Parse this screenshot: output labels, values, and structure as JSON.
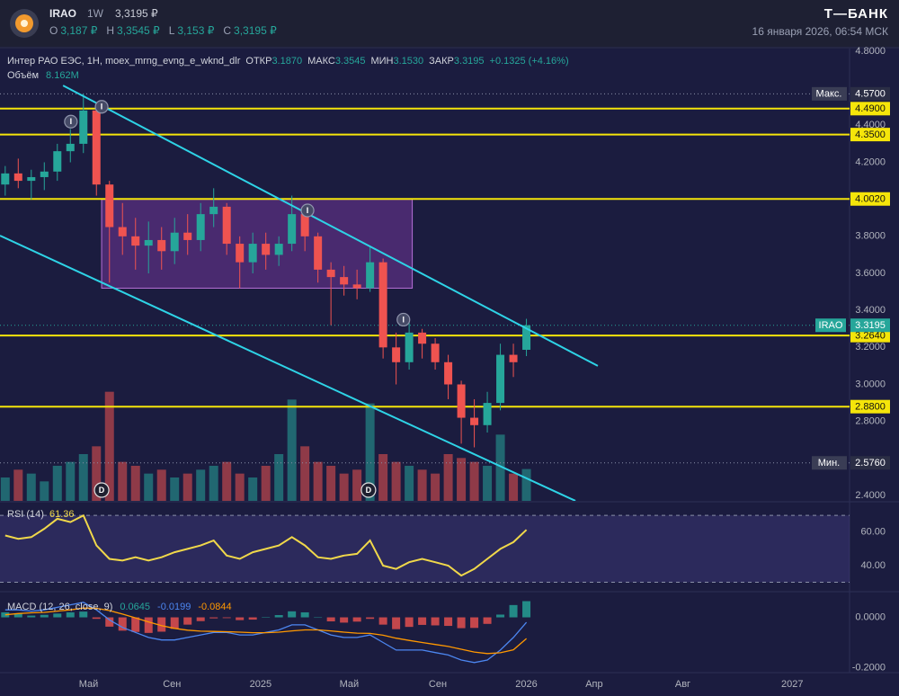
{
  "header": {
    "symbol": "IRAO",
    "interval": "1W",
    "price": "3,3195 ₽",
    "ohlc": [
      {
        "key": "O",
        "value": "3,187 ₽"
      },
      {
        "key": "H",
        "value": "3,3545 ₽"
      },
      {
        "key": "L",
        "value": "3,153 ₽"
      },
      {
        "key": "C",
        "value": "3,3195 ₽"
      }
    ],
    "brand": "Т—БАНК",
    "datetime": "16 января 2026, 06:54 МСК"
  },
  "chart_data": [
    {
      "type": "candlestick",
      "legend": {
        "name": "Интер РАО ЕЭС, 1H, moex_mrng_evng_e_wknd_dlr",
        "fields": [
          {
            "key": "ОТКР",
            "value": "3.1870"
          },
          {
            "key": "МАКС",
            "value": "3.3545"
          },
          {
            "key": "МИН",
            "value": "3.1530"
          },
          {
            "key": "ЗАКР",
            "value": "3.3195"
          }
        ],
        "change": "+0.1325 (+4.16%)"
      },
      "volume_title": "Объём",
      "volume_value": "8.162M",
      "up_color": "#26a69a",
      "down_color": "#ef5350",
      "x": [
        0,
        2.5,
        5,
        7.5,
        10,
        12.5,
        15,
        17.5,
        20,
        22.5,
        25,
        27.5,
        30,
        32.5,
        35,
        37.5,
        40,
        42.5,
        45,
        47.5,
        50,
        52.5,
        55,
        57.5,
        60,
        62.5,
        65,
        67.5,
        70,
        72.5,
        75,
        77.5,
        80,
        82.5,
        85,
        87.5,
        90,
        92.5,
        95,
        97.5,
        100
      ],
      "open": [
        4.08,
        4.14,
        4.1,
        4.12,
        4.15,
        4.26,
        4.3,
        4.48,
        4.08,
        3.85,
        3.8,
        3.75,
        3.78,
        3.72,
        3.82,
        3.78,
        3.92,
        3.96,
        3.76,
        3.66,
        3.76,
        3.7,
        3.76,
        3.92,
        3.8,
        3.62,
        3.58,
        3.54,
        3.52,
        3.66,
        3.2,
        3.12,
        3.28,
        3.22,
        3.12,
        3.0,
        2.82,
        2.78,
        2.9,
        3.16,
        3.187
      ],
      "high": [
        4.18,
        4.22,
        4.16,
        4.2,
        4.3,
        4.38,
        4.57,
        4.5,
        4.1,
        3.98,
        3.9,
        3.88,
        3.85,
        3.9,
        3.92,
        3.98,
        4.06,
        3.98,
        3.8,
        3.82,
        3.82,
        3.8,
        4.02,
        3.96,
        3.82,
        3.66,
        3.64,
        3.62,
        3.75,
        3.68,
        3.28,
        3.36,
        3.3,
        3.25,
        3.16,
        3.02,
        2.92,
        2.96,
        3.22,
        3.22,
        3.3545
      ],
      "low": [
        4.02,
        4.06,
        4.0,
        4.05,
        4.1,
        4.2,
        4.25,
        4.02,
        3.55,
        3.7,
        3.62,
        3.6,
        3.62,
        3.65,
        3.7,
        3.72,
        3.85,
        3.7,
        3.52,
        3.6,
        3.62,
        3.64,
        3.72,
        3.72,
        3.55,
        3.32,
        3.48,
        3.46,
        3.5,
        3.14,
        3.0,
        3.08,
        3.14,
        3.08,
        2.92,
        2.68,
        2.66,
        2.74,
        2.86,
        3.04,
        3.153
      ],
      "close": [
        4.14,
        4.1,
        4.12,
        4.15,
        4.26,
        4.3,
        4.48,
        4.08,
        3.85,
        3.8,
        3.75,
        3.78,
        3.72,
        3.82,
        3.78,
        3.92,
        3.96,
        3.76,
        3.66,
        3.76,
        3.7,
        3.76,
        3.92,
        3.8,
        3.62,
        3.58,
        3.54,
        3.52,
        3.66,
        3.2,
        3.12,
        3.28,
        3.22,
        3.12,
        3.0,
        2.82,
        2.78,
        2.9,
        3.16,
        3.12,
        3.3195
      ],
      "volume": [
        6,
        8,
        7,
        5,
        9,
        10,
        12,
        14,
        28,
        10,
        9,
        7,
        8,
        6,
        7,
        8,
        9,
        10,
        7,
        6,
        9,
        12,
        26,
        14,
        10,
        9,
        7,
        8,
        25,
        12,
        10,
        9,
        8,
        7,
        12,
        11,
        10,
        9,
        17,
        7,
        8.162
      ],
      "volume_lim": [
        0,
        30
      ],
      "xlim": [
        -1,
        162
      ],
      "xticks": [
        {
          "value": 16,
          "label": "Май"
        },
        {
          "value": 32,
          "label": "Сен"
        },
        {
          "value": 49,
          "label": "2025"
        },
        {
          "value": 66,
          "label": "Май"
        },
        {
          "value": 83,
          "label": "Сен"
        },
        {
          "value": 100,
          "label": "2026"
        },
        {
          "value": 113,
          "label": "Апр"
        },
        {
          "value": 130,
          "label": "Авг"
        },
        {
          "value": 151,
          "label": "2027"
        }
      ],
      "ylim": [
        2.4,
        4.8
      ],
      "yticks": [
        {
          "value": 2.4,
          "label": "2.4000"
        },
        {
          "value": 2.8,
          "label": "2.8000"
        },
        {
          "value": 3.0,
          "label": "3.0000"
        },
        {
          "value": 3.2,
          "label": "3.2000"
        },
        {
          "value": 3.4,
          "label": "3.4000"
        },
        {
          "value": 3.6,
          "label": "3.6000"
        },
        {
          "value": 3.8,
          "label": "3.8000"
        },
        {
          "value": 4.2,
          "label": "4.2000"
        },
        {
          "value": 4.4,
          "label": "4.4000"
        },
        {
          "value": 4.8,
          "label": "4.8000"
        }
      ],
      "grid": false,
      "levels": [
        {
          "value": 4.49,
          "label": "4.4900"
        },
        {
          "value": 4.35,
          "label": "4.3500"
        },
        {
          "value": 4.002,
          "label": "4.0020"
        },
        {
          "value": 3.264,
          "label": "3.2640"
        },
        {
          "value": 2.88,
          "label": "2.8800"
        }
      ],
      "level_color": "#f5e50a",
      "max": {
        "label": "Макс.",
        "value": 4.57,
        "value_label": "4.5700"
      },
      "min": {
        "label": "Мин.",
        "value": 2.576,
        "value_label": "2.5760"
      },
      "last": {
        "name": "IRAO",
        "value": 3.3195,
        "value_label": "3.3195"
      },
      "trendline_color": "#2ed3e6",
      "trendlines": [
        {
          "x": [
            11.1,
            113.7
          ],
          "y": [
            4.615,
            3.1
          ]
        },
        {
          "x": [
            -1,
            109.4
          ],
          "y": [
            3.804,
            2.371
          ]
        }
      ],
      "range_box": {
        "x": [
          18.5,
          78.1
        ],
        "y": [
          3.52,
          4.0
        ]
      },
      "events": [
        {
          "label": "I",
          "x": 12.6,
          "y": 4.42
        },
        {
          "label": "I",
          "x": 18.5,
          "y": 4.5
        },
        {
          "label": "I",
          "x": 58,
          "y": 3.94
        },
        {
          "label": "I",
          "x": 76.4,
          "y": 3.35
        },
        {
          "label": "D",
          "x": 18.5
        },
        {
          "label": "D",
          "x": 69.7
        }
      ]
    },
    {
      "type": "line",
      "title": "RSI (14)",
      "value_label": "61.36",
      "color": "#f0d84a",
      "x": [
        0,
        2.5,
        5,
        7.5,
        10,
        12.5,
        15,
        17.5,
        20,
        22.5,
        25,
        27.5,
        30,
        32.5,
        35,
        37.5,
        40,
        42.5,
        45,
        47.5,
        50,
        52.5,
        55,
        57.5,
        60,
        62.5,
        65,
        67.5,
        70,
        72.5,
        75,
        77.5,
        80,
        82.5,
        85,
        87.5,
        90,
        92.5,
        95,
        97.5,
        100
      ],
      "values": [
        58,
        56,
        57,
        62,
        68,
        66,
        70,
        52,
        44,
        43,
        45,
        43,
        45,
        48,
        50,
        52,
        55,
        46,
        44,
        48,
        50,
        52,
        57,
        52,
        45,
        44,
        46,
        47,
        55,
        40,
        38,
        42,
        44,
        42,
        40,
        34,
        38,
        44,
        50,
        54,
        61.36
      ],
      "bands": [
        70,
        30
      ],
      "xlim": [
        -1,
        162
      ],
      "ylim": [
        26,
        76
      ],
      "yticks": [
        {
          "value": 60,
          "label": "60.00"
        },
        {
          "value": 40,
          "label": "40.00"
        }
      ]
    },
    {
      "type": "macd",
      "title": "MACD (12, 26, close, 9)",
      "x": [
        0,
        2.5,
        5,
        7.5,
        10,
        12.5,
        15,
        17.5,
        20,
        22.5,
        25,
        27.5,
        30,
        32.5,
        35,
        37.5,
        40,
        42.5,
        45,
        47.5,
        50,
        52.5,
        55,
        57.5,
        60,
        62.5,
        65,
        67.5,
        70,
        72.5,
        75,
        77.5,
        80,
        82.5,
        85,
        87.5,
        90,
        92.5,
        95,
        97.5,
        100
      ],
      "histogram": {
        "value_label": "0.0645",
        "up_color": "#26a69a",
        "down_color": "#ef5350",
        "values": [
          0.02,
          0.015,
          0.007,
          0.01,
          0.015,
          0.02,
          0.023,
          -0.006,
          -0.037,
          -0.053,
          -0.058,
          -0.062,
          -0.057,
          -0.046,
          -0.029,
          -0.015,
          -0.004,
          -0.003,
          -0.011,
          -0.009,
          0.001,
          0.009,
          0.024,
          0.02,
          0,
          -0.016,
          -0.021,
          -0.017,
          -0.006,
          -0.029,
          -0.047,
          -0.038,
          -0.03,
          -0.032,
          -0.034,
          -0.043,
          -0.042,
          -0.026,
          0.011,
          0.049,
          0.0645
        ]
      },
      "series": [
        {
          "color": "#4c86f0",
          "value_label": "-0.0199",
          "values": [
            0.03,
            0.03,
            0.025,
            0.03,
            0.04,
            0.05,
            0.06,
            0.03,
            -0.01,
            -0.04,
            -0.06,
            -0.08,
            -0.09,
            -0.09,
            -0.08,
            -0.07,
            -0.06,
            -0.06,
            -0.07,
            -0.07,
            -0.06,
            -0.05,
            -0.03,
            -0.03,
            -0.05,
            -0.07,
            -0.08,
            -0.08,
            -0.07,
            -0.1,
            -0.13,
            -0.13,
            -0.13,
            -0.14,
            -0.15,
            -0.17,
            -0.18,
            -0.17,
            -0.13,
            -0.08,
            -0.0199
          ]
        },
        {
          "color": "#ff9800",
          "value_label": "-0.0844",
          "values": [
            0.01,
            0.015,
            0.018,
            0.02,
            0.025,
            0.03,
            0.037,
            0.036,
            0.027,
            0.013,
            -0.002,
            -0.018,
            -0.033,
            -0.044,
            -0.051,
            -0.055,
            -0.056,
            -0.057,
            -0.059,
            -0.061,
            -0.061,
            -0.059,
            -0.054,
            -0.05,
            -0.05,
            -0.054,
            -0.059,
            -0.063,
            -0.064,
            -0.071,
            -0.083,
            -0.092,
            -0.1,
            -0.108,
            -0.116,
            -0.127,
            -0.138,
            -0.144,
            -0.141,
            -0.129,
            -0.0844
          ]
        }
      ],
      "xlim": [
        -1,
        162
      ],
      "ylim": [
        -0.22,
        0.095
      ],
      "yticks": [
        {
          "value": 0,
          "label": "0.0000"
        },
        {
          "value": -0.2,
          "label": "-0.2000"
        }
      ]
    }
  ]
}
